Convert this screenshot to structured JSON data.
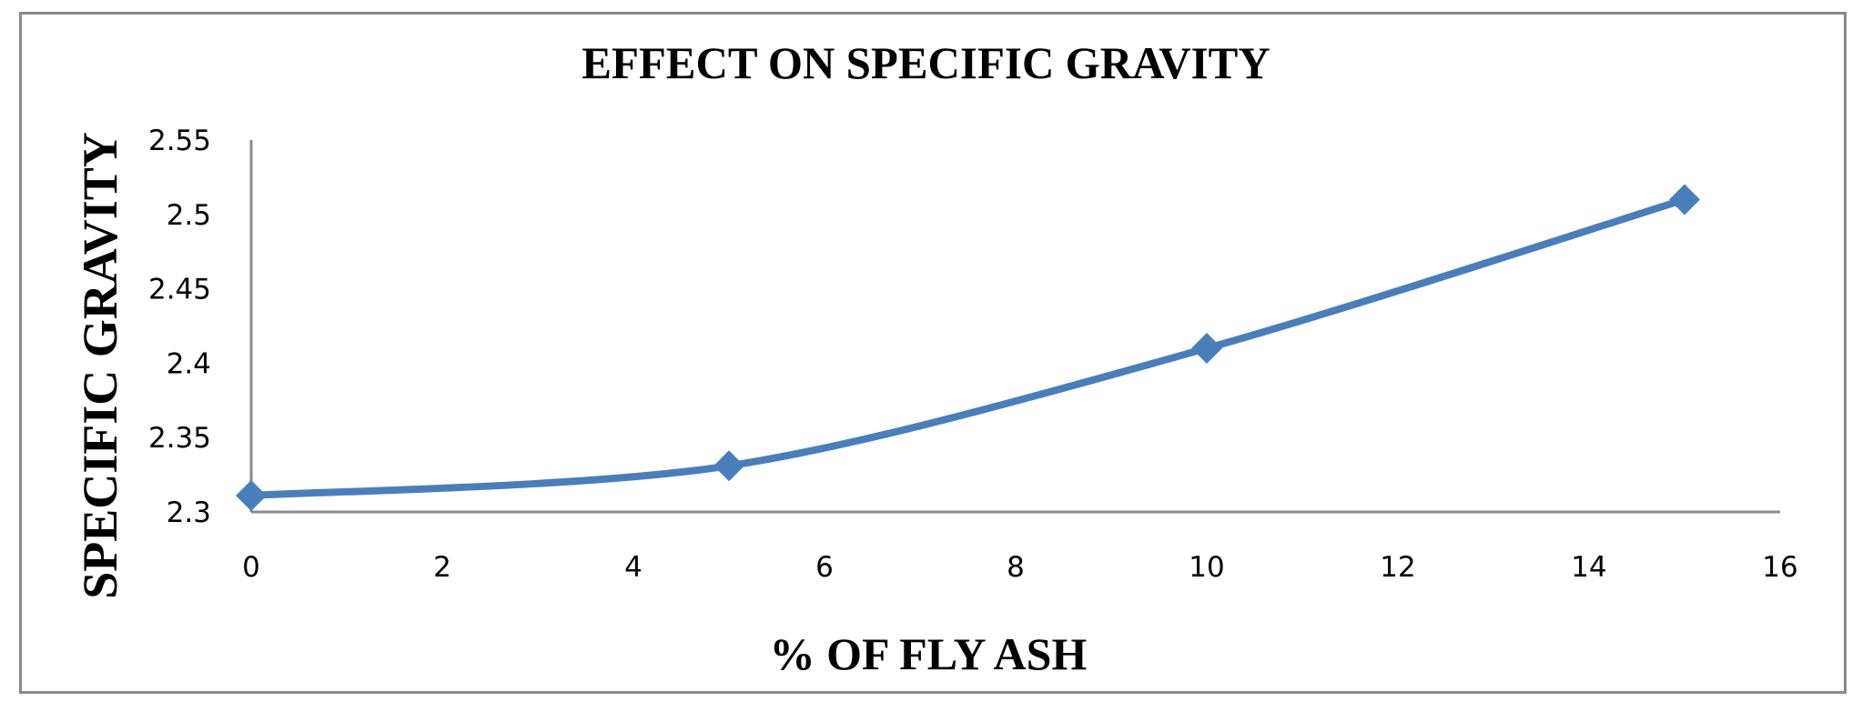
{
  "chart_data": {
    "type": "line",
    "title": "EFFECT  ON SPECIFIC  GRAVITY",
    "xlabel": "% OF FLY ASH",
    "ylabel": "SPECIFIC  GRAVITY",
    "x": [
      0,
      5,
      10,
      15
    ],
    "series": [
      {
        "name": "Specific Gravity",
        "values": [
          2.311,
          2.331,
          2.41,
          2.51
        ],
        "color": "#4a7ebb",
        "marker": "diamond",
        "smooth": true
      }
    ],
    "xlim": [
      0,
      16
    ],
    "ylim": [
      2.3,
      2.55
    ],
    "xticks": [
      "0",
      "2",
      "4",
      "6",
      "8",
      "10",
      "12",
      "14",
      "16"
    ],
    "yticks": [
      "2.3",
      "2.35",
      "2.4",
      "2.45",
      "2.5",
      "2.55"
    ],
    "grid": false,
    "legend": null
  },
  "colors": {
    "series": "#4a7ebb",
    "axis": "#8a8a8a",
    "border": "#8a8a8a"
  }
}
